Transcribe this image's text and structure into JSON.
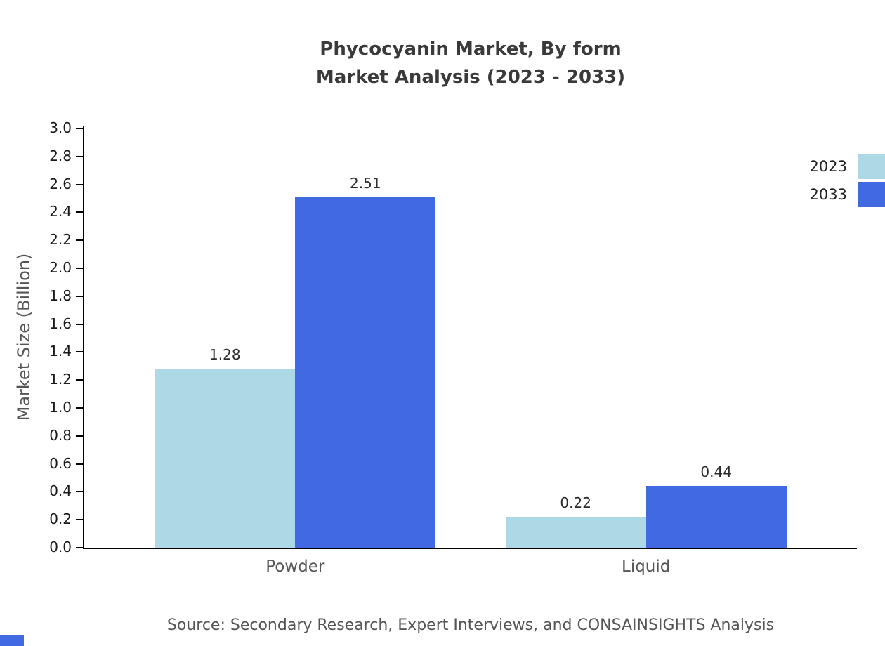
{
  "title": {
    "line1": "Phycocyanin Market, By form",
    "line2": "Market Analysis (2023 - 2033)"
  },
  "source": "Source: Secondary Research, Expert Interviews, and CONSAINSIGHTS Analysis",
  "accent_color": "#4169E1",
  "chart_data": {
    "type": "bar",
    "title": "Phycocyanin Market, By form Market Analysis (2023 - 2033)",
    "categories": [
      "Powder",
      "Liquid"
    ],
    "series": [
      {
        "name": "2023",
        "values": [
          1.28,
          0.22
        ],
        "color": "#ADD8E6"
      },
      {
        "name": "2033",
        "values": [
          2.51,
          0.44
        ],
        "color": "#4169E1"
      }
    ],
    "data_labels": [
      [
        "1.28",
        "0.22"
      ],
      [
        "2.51",
        "0.44"
      ]
    ],
    "xlabel": "",
    "ylabel": "Market Size (Billion)",
    "ylim": [
      0,
      3.0
    ],
    "ytick_step": 0.2,
    "ytick_labels": [
      "0.0",
      "0.2",
      "0.4",
      "0.6",
      "0.8",
      "1.0",
      "1.2",
      "1.4",
      "1.6",
      "1.8",
      "2.0",
      "2.2",
      "2.4",
      "2.6",
      "2.8",
      "3.0"
    ],
    "legend_position": "top-right",
    "grid": false
  }
}
